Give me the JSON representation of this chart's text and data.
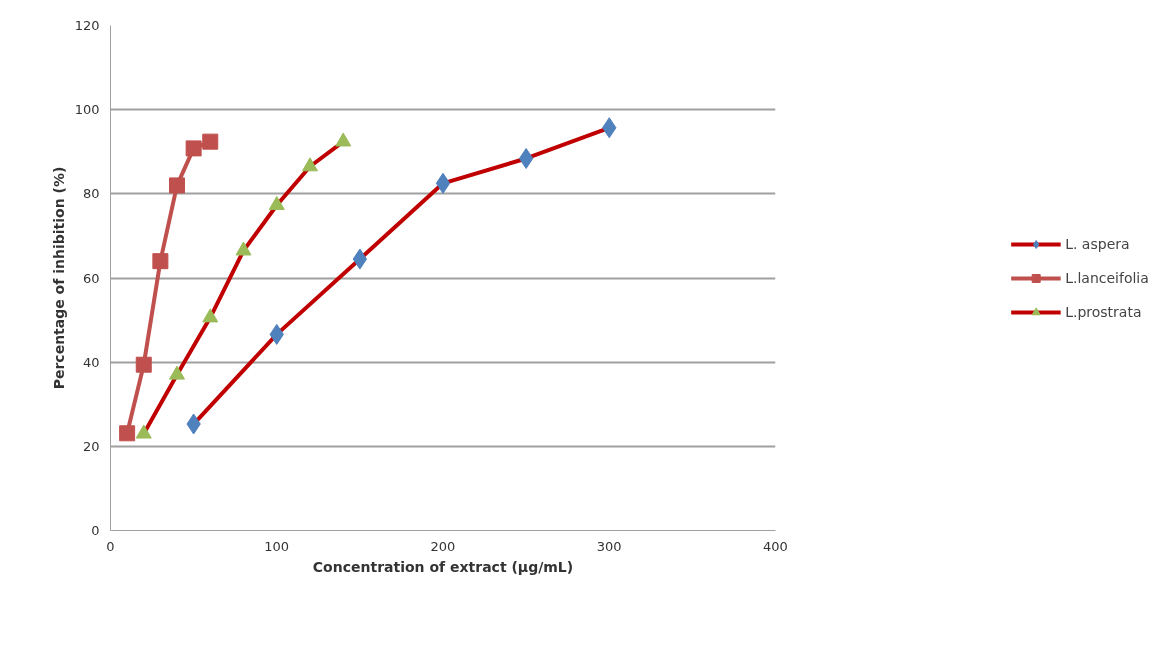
{
  "chart_data": {
    "type": "line",
    "xlabel": "Concentration of extract (µg/mL)",
    "ylabel": "Percentage of inhibition (%)",
    "xlim": [
      0,
      400
    ],
    "xticks": [
      0,
      100,
      200,
      300,
      400
    ],
    "ylim": [
      0,
      120
    ],
    "yticks": [
      0,
      20,
      40,
      60,
      80,
      100,
      120
    ],
    "grid": "y",
    "legend": "right",
    "line_style": "solid",
    "series": [
      {
        "name": "L. aspera",
        "color": "#c00000",
        "colors": [
          "#4f81bd",
          "#4f81bd",
          "#4f81bd",
          "#4f81bd",
          "#4f81bd",
          "#4f81bd"
        ],
        "marker": "diamond",
        "x": [
          50,
          100,
          150,
          200,
          250,
          300
        ],
        "values": [
          25.3,
          46.6,
          64.5,
          82.5,
          88.4,
          95.7
        ]
      },
      {
        "name": "L.lanceifolia",
        "color": "#c0504d",
        "colors": [
          "#c0504d",
          "#c0504d",
          "#c0504d",
          "#c0504d",
          "#c0504d",
          "#c0504d"
        ],
        "marker": "square",
        "x": [
          10,
          20,
          30,
          40,
          50,
          60
        ],
        "values": [
          23.1,
          39.4,
          64,
          82,
          90.8,
          92.4
        ]
      },
      {
        "name": "L.prostrata",
        "color": "#c00000",
        "colors": [
          "#9bbb59",
          "#9bbb59",
          "#9bbb59",
          "#9bbb59",
          "#9bbb59",
          "#9bbb59",
          "#9bbb59"
        ],
        "marker": "triangle",
        "x": [
          20,
          40,
          60,
          80,
          100,
          120,
          140
        ],
        "values": [
          23,
          37,
          50.6,
          66.5,
          77.3,
          86.5,
          92.4
        ]
      }
    ]
  }
}
